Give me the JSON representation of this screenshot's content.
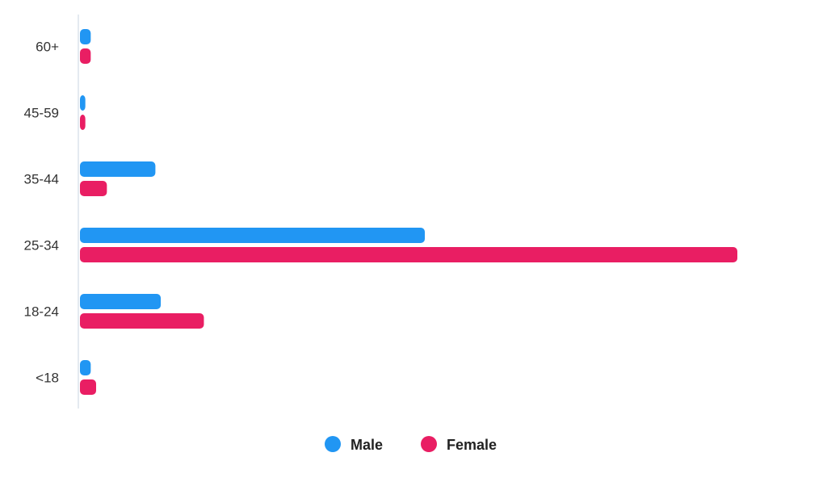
{
  "chart_data": {
    "type": "bar",
    "orientation": "horizontal",
    "categories": [
      "60+",
      "45-59",
      "35-44",
      "25-34",
      "18-24",
      "<18"
    ],
    "series": [
      {
        "name": "Male",
        "color": "#2196f3",
        "values": [
          2,
          1,
          14,
          64,
          15,
          2
        ]
      },
      {
        "name": "Female",
        "color": "#e91e63",
        "values": [
          2,
          1,
          5,
          122,
          23,
          3
        ]
      }
    ],
    "xlim": [
      0,
      122
    ],
    "grid": false,
    "legend": "bottom-center",
    "title": "",
    "xlabel": "",
    "ylabel": ""
  }
}
